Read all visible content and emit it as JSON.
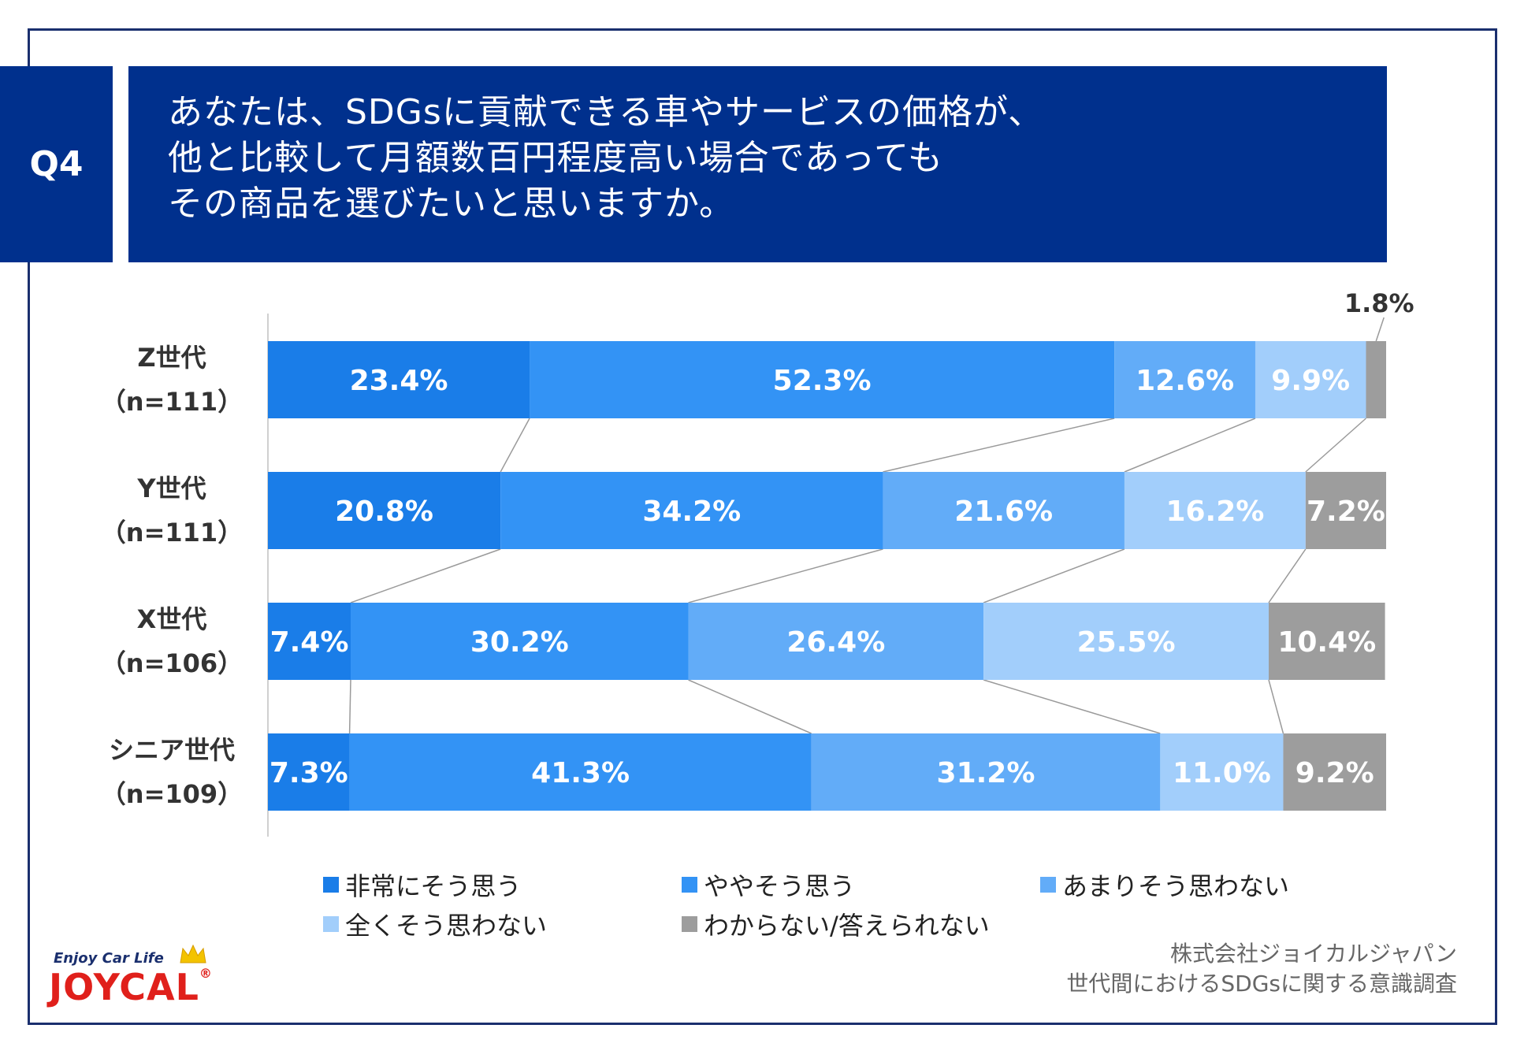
{
  "question": {
    "tag": "Q4",
    "lines": [
      "あなたは、SDGsに貢献できる車やサービスの価格が、",
      "他と比較して月額数百円程度高い場合であっても",
      "その商品を選びたいと思いますか。"
    ]
  },
  "chart_data": {
    "type": "bar",
    "orientation": "horizontal",
    "stacked": "100%",
    "categories": [
      "Z世代\n（n=111）",
      "Y世代\n（n=111）",
      "X世代\n（n=106）",
      "シニア世代\n（n=109）"
    ],
    "series": [
      {
        "name": "非常にそう思う",
        "values": [
          23.4,
          20.8,
          7.4,
          7.3
        ],
        "labels": [
          "23.4%",
          "20.8%",
          "7.4%",
          "7.3%"
        ],
        "color": "#1a7de8"
      },
      {
        "name": "ややそう思う",
        "values": [
          52.3,
          34.2,
          30.2,
          41.3
        ],
        "labels": [
          "52.3%",
          "34.2%",
          "30.2%",
          "41.3%"
        ],
        "color": "#3393f5"
      },
      {
        "name": "あまりそう思わない",
        "values": [
          12.6,
          21.6,
          26.4,
          31.2
        ],
        "labels": [
          "12.6%",
          "21.6%",
          "26.4%",
          "31.2%"
        ],
        "color": "#62acf8"
      },
      {
        "name": "全くそう思わない",
        "values": [
          9.9,
          16.2,
          25.5,
          11.0
        ],
        "labels": [
          "9.9%",
          "16.2%",
          "25.5%",
          "11.0%"
        ],
        "color": "#a2cefb"
      },
      {
        "name": "わからない/答えられない",
        "values": [
          1.8,
          7.2,
          10.4,
          9.2
        ],
        "labels": [
          "1.8%",
          "7.2%",
          "10.4%",
          "9.2%"
        ],
        "color": "#9d9d9d"
      }
    ],
    "xlim": [
      0,
      100
    ],
    "grid": false,
    "connector_lines": true,
    "legend_position": "bottom"
  },
  "source": {
    "company": "株式会社ジョイカルジャパン",
    "survey": "世代間におけるSDGsに関する意識調査"
  },
  "logo": {
    "tagline": "Enjoy Car Life",
    "word": "JOYCAL",
    "registered": "®"
  },
  "colors": {
    "header_bg": "#00308d",
    "frame": "#1a2f6e",
    "bar_label": "#ffffff",
    "logo_red": "#e0201b",
    "crown": "#f3c300"
  }
}
